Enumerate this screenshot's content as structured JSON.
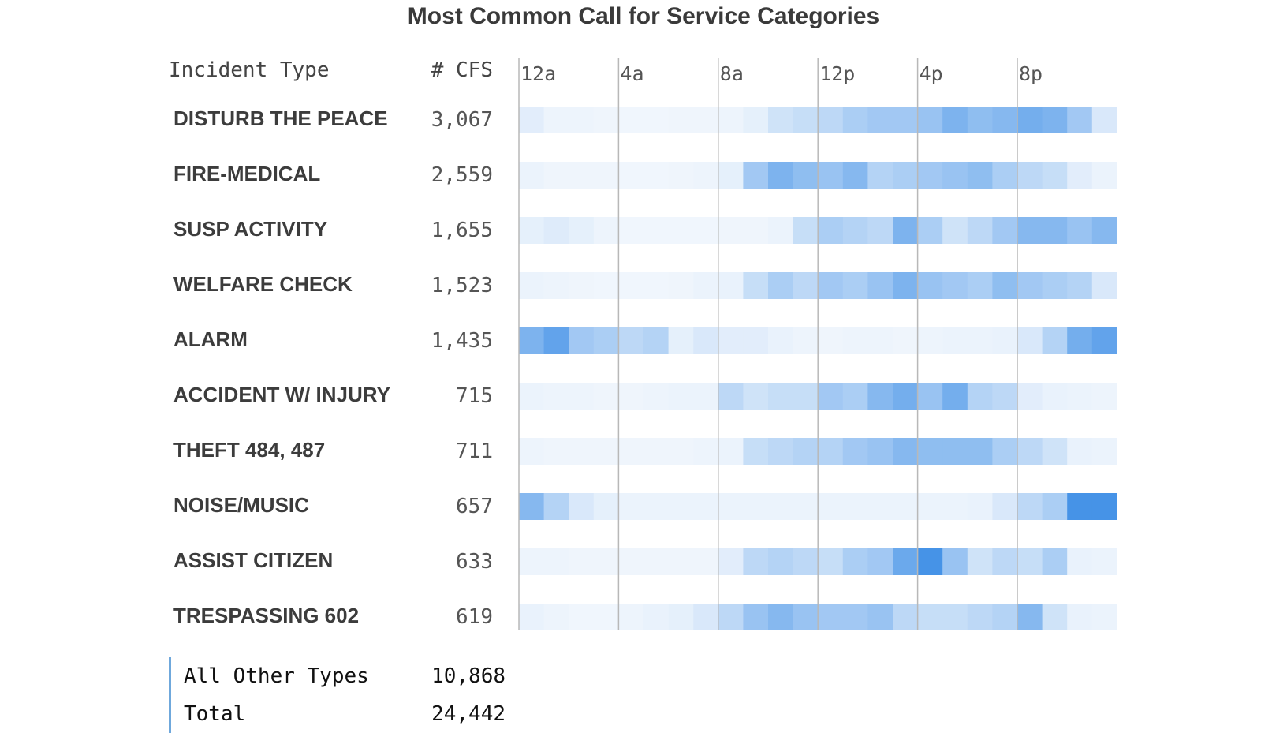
{
  "chart_data": {
    "type": "heatmap",
    "title": "Most Common Call for Service Categories",
    "col_headers": {
      "type": "Incident Type",
      "count": "# CFS"
    },
    "hour_labels": [
      "12a",
      "4a",
      "8a",
      "12p",
      "4p",
      "8p"
    ],
    "bins_per_row": 24,
    "color_low": "#f4f8fd",
    "color_high": "#3d8ee6",
    "rows": [
      {
        "label": "DISTURB THE PEACE",
        "count": "3,067",
        "intensity": [
          0.1,
          0.04,
          0.04,
          0.03,
          0.02,
          0.02,
          0.03,
          0.03,
          0.04,
          0.08,
          0.2,
          0.25,
          0.3,
          0.4,
          0.45,
          0.45,
          0.5,
          0.65,
          0.55,
          0.6,
          0.7,
          0.65,
          0.45,
          0.15
        ]
      },
      {
        "label": "FIRE-MEDICAL",
        "count": "2,559",
        "intensity": [
          0.05,
          0.03,
          0.03,
          0.03,
          0.02,
          0.02,
          0.03,
          0.04,
          0.08,
          0.45,
          0.65,
          0.55,
          0.5,
          0.6,
          0.35,
          0.4,
          0.45,
          0.5,
          0.55,
          0.4,
          0.3,
          0.25,
          0.1,
          0.05
        ]
      },
      {
        "label": "SUSP ACTIVITY",
        "count": "1,655",
        "intensity": [
          0.08,
          0.12,
          0.08,
          0.04,
          0.02,
          0.02,
          0.02,
          0.02,
          0.03,
          0.03,
          0.05,
          0.25,
          0.4,
          0.35,
          0.3,
          0.65,
          0.4,
          0.2,
          0.3,
          0.45,
          0.6,
          0.6,
          0.5,
          0.6
        ]
      },
      {
        "label": "WELFARE CHECK",
        "count": "1,523",
        "intensity": [
          0.05,
          0.04,
          0.03,
          0.02,
          0.02,
          0.02,
          0.03,
          0.05,
          0.06,
          0.25,
          0.4,
          0.3,
          0.45,
          0.4,
          0.5,
          0.65,
          0.5,
          0.45,
          0.4,
          0.55,
          0.45,
          0.4,
          0.35,
          0.15
        ]
      },
      {
        "label": "ALARM",
        "count": "1,435",
        "intensity": [
          0.65,
          0.8,
          0.45,
          0.4,
          0.3,
          0.35,
          0.08,
          0.15,
          0.1,
          0.1,
          0.06,
          0.04,
          0.03,
          0.04,
          0.04,
          0.03,
          0.04,
          0.05,
          0.05,
          0.06,
          0.15,
          0.35,
          0.7,
          0.8
        ]
      },
      {
        "label": "ACCIDENT W/ INJURY",
        "count": "715",
        "intensity": [
          0.05,
          0.04,
          0.04,
          0.03,
          0.03,
          0.04,
          0.05,
          0.05,
          0.3,
          0.2,
          0.25,
          0.25,
          0.45,
          0.4,
          0.6,
          0.7,
          0.5,
          0.7,
          0.35,
          0.3,
          0.1,
          0.06,
          0.05,
          0.04
        ]
      },
      {
        "label": "THEFT  484, 487",
        "count": "711",
        "intensity": [
          0.04,
          0.03,
          0.03,
          0.03,
          0.03,
          0.03,
          0.03,
          0.04,
          0.05,
          0.25,
          0.3,
          0.35,
          0.35,
          0.45,
          0.5,
          0.6,
          0.55,
          0.55,
          0.55,
          0.4,
          0.3,
          0.2,
          0.06,
          0.05
        ]
      },
      {
        "label": "NOISE/MUSIC",
        "count": "657",
        "intensity": [
          0.6,
          0.35,
          0.15,
          0.08,
          0.05,
          0.05,
          0.05,
          0.05,
          0.05,
          0.05,
          0.05,
          0.05,
          0.05,
          0.05,
          0.05,
          0.05,
          0.05,
          0.05,
          0.06,
          0.15,
          0.3,
          0.4,
          0.95,
          0.95
        ]
      },
      {
        "label": "ASSIST CITIZEN",
        "count": "633",
        "intensity": [
          0.04,
          0.04,
          0.03,
          0.03,
          0.03,
          0.03,
          0.03,
          0.03,
          0.1,
          0.3,
          0.35,
          0.3,
          0.25,
          0.4,
          0.45,
          0.75,
          0.95,
          0.5,
          0.2,
          0.3,
          0.25,
          0.4,
          0.06,
          0.05
        ]
      },
      {
        "label": "TRESPASSING  602",
        "count": "619",
        "intensity": [
          0.06,
          0.04,
          0.02,
          0.02,
          0.04,
          0.06,
          0.08,
          0.15,
          0.3,
          0.5,
          0.6,
          0.5,
          0.45,
          0.45,
          0.5,
          0.3,
          0.25,
          0.25,
          0.3,
          0.35,
          0.6,
          0.2,
          0.06,
          0.05
        ]
      }
    ],
    "footer": [
      {
        "label": "All Other Types",
        "value": "10,868"
      },
      {
        "label": "Total",
        "value": "24,442"
      }
    ]
  }
}
